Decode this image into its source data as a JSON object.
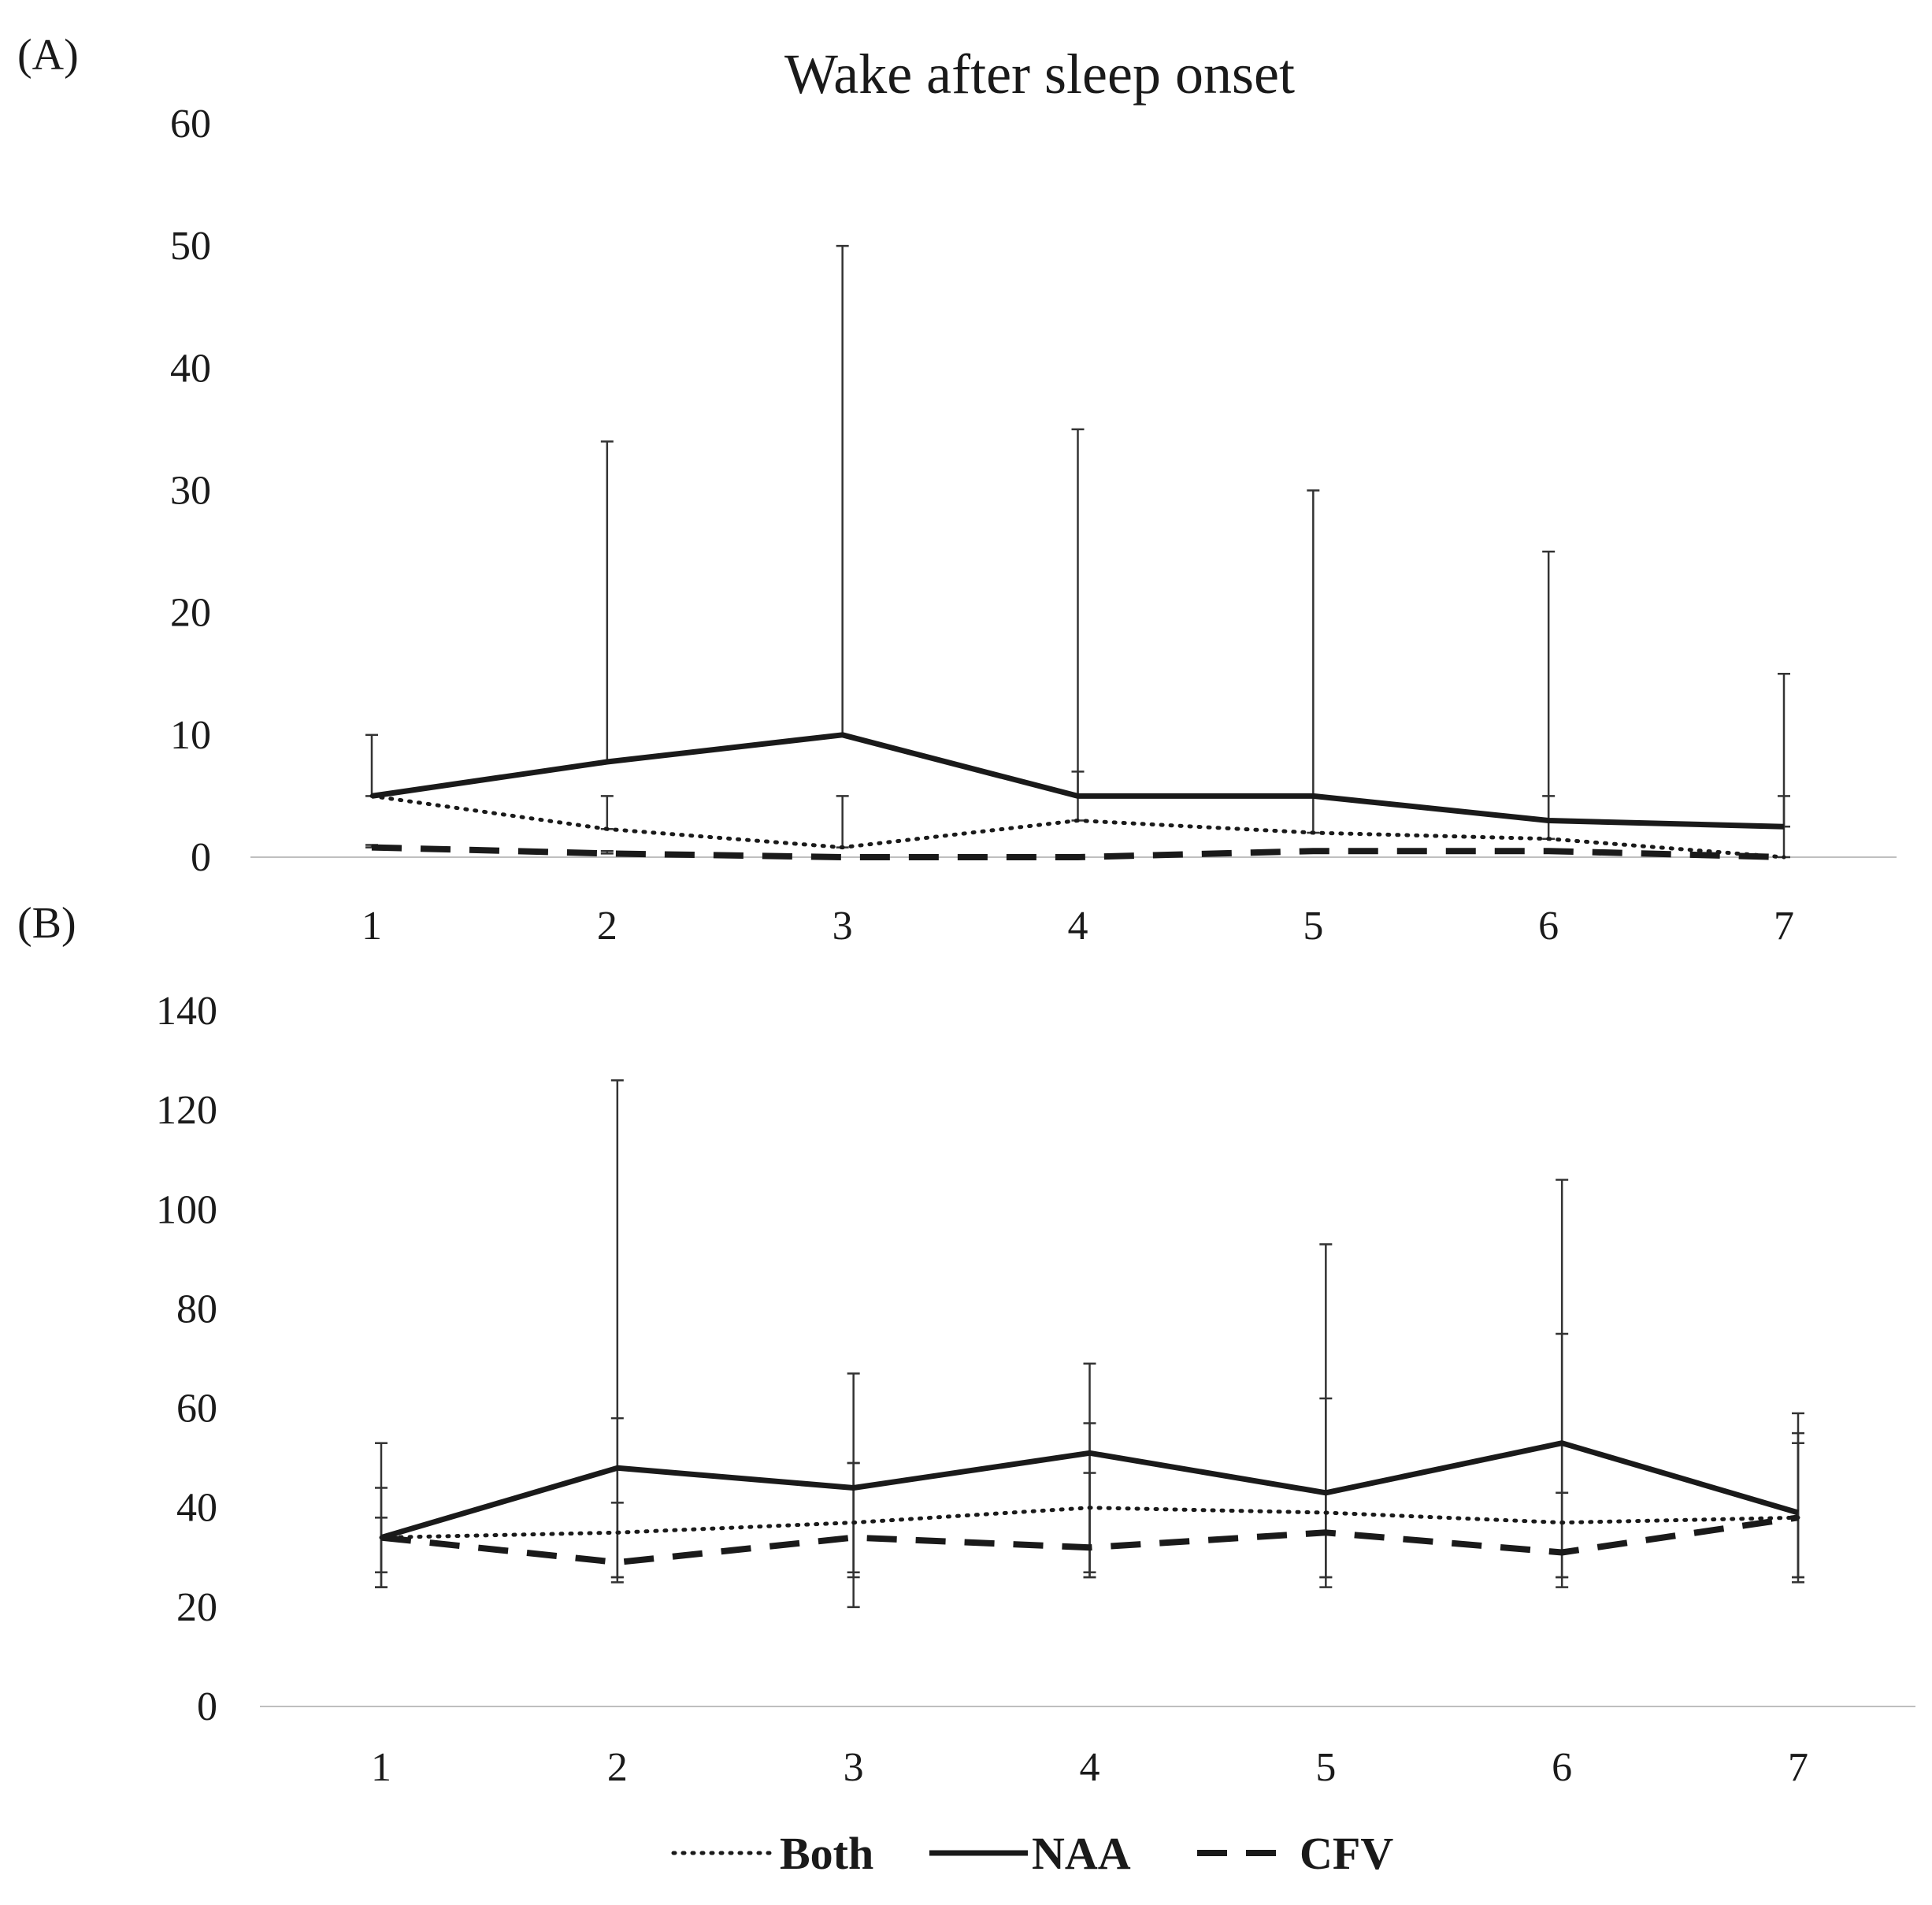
{
  "chart_data": [
    {
      "panel_label": "(A)",
      "type": "line",
      "title": "Wake after sleep onset",
      "xlabel": "",
      "ylabel": "",
      "categories": [
        "1",
        "2",
        "3",
        "4",
        "5",
        "6",
        "7"
      ],
      "ylim": [
        0,
        60
      ],
      "yticks": [
        "0",
        "10",
        "20",
        "30",
        "40",
        "50",
        "60"
      ],
      "grid": false,
      "series": [
        {
          "name": "Both",
          "style": "dotted",
          "values": [
            5,
            2.3,
            0.8,
            3,
            2,
            1.5,
            0
          ],
          "err_upper": [
            5,
            5,
            5,
            7,
            5,
            5,
            5
          ]
        },
        {
          "name": "NAA",
          "style": "solid",
          "values": [
            5,
            7.8,
            10,
            5,
            5,
            3,
            2.5
          ],
          "err_upper": [
            10,
            34,
            50,
            35,
            30,
            25,
            15
          ]
        },
        {
          "name": "CFV",
          "style": "dashed",
          "values": [
            0.8,
            0.3,
            0,
            0,
            0.5,
            0.5,
            0
          ],
          "err_upper": [
            1,
            0.5,
            0,
            0,
            0.5,
            0.5,
            0
          ]
        }
      ]
    },
    {
      "panel_label": "(B)",
      "type": "line",
      "title": "",
      "xlabel": "",
      "ylabel": "",
      "categories": [
        "1",
        "2",
        "3",
        "4",
        "5",
        "6",
        "7"
      ],
      "ylim": [
        0,
        140
      ],
      "yticks": [
        "0",
        "20",
        "40",
        "60",
        "80",
        "100",
        "120",
        "140"
      ],
      "grid": false,
      "series": [
        {
          "name": "Both",
          "style": "dotted",
          "values": [
            34,
            35,
            37,
            40,
            39,
            37,
            38
          ],
          "err_low": [
            27,
            26,
            27,
            27,
            26,
            26,
            26
          ],
          "err_high": [
            44,
            41,
            49,
            57,
            62,
            75,
            55
          ]
        },
        {
          "name": "NAA",
          "style": "solid",
          "values": [
            34,
            48,
            44,
            51,
            43,
            53,
            39
          ],
          "err_low": [
            24,
            26,
            26,
            26,
            26,
            26,
            26
          ],
          "err_high": [
            53,
            126,
            67,
            69,
            93,
            106,
            59
          ]
        },
        {
          "name": "CFV",
          "style": "dashed",
          "values": [
            34,
            29,
            34,
            32,
            35,
            31,
            38
          ],
          "err_low": [
            24,
            25,
            20,
            26,
            24,
            24,
            25
          ],
          "err_high": [
            38,
            58,
            49,
            47,
            43,
            43,
            53
          ]
        }
      ]
    }
  ],
  "legend": {
    "items": [
      {
        "label": "Both",
        "style": "dotted"
      },
      {
        "label": "NAA",
        "style": "solid"
      },
      {
        "label": "CFV",
        "style": "dashed"
      }
    ]
  },
  "colors": {
    "line": "#1a1a1a",
    "axis": "#bfbfbf",
    "error_bar": "#333333"
  }
}
